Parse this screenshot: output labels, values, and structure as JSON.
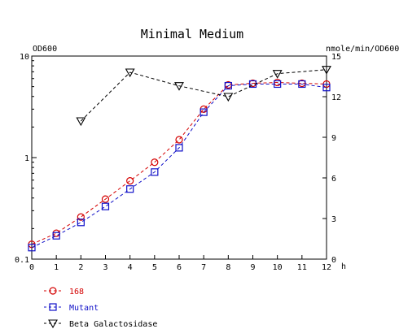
{
  "chart_data": {
    "type": "line",
    "title": "Minimal Medium",
    "left_axis_label": "OD600",
    "right_axis_label": "nmole/min/OD600",
    "x_unit_label": "h",
    "x_ticks": [
      "0",
      "1",
      "2",
      "3",
      "4",
      "5",
      "6",
      "7",
      "8",
      "9",
      "10",
      "11",
      "12"
    ],
    "x_range": [
      0,
      12
    ],
    "left_axis_scale": "log",
    "left_axis_range": [
      0.1,
      10
    ],
    "left_ticks": [
      {
        "value": 0.1,
        "label": "0.1"
      },
      {
        "value": 1,
        "label": "1"
      },
      {
        "value": 10,
        "label": "10"
      }
    ],
    "right_axis_range": [
      0,
      15
    ],
    "right_ticks": [
      "0",
      "3",
      "6",
      "9",
      "12",
      "15"
    ],
    "grid": false,
    "legend_position": "bottom-left",
    "series": [
      {
        "name": "168",
        "axis": "left",
        "color": "#d40000",
        "marker": "circle",
        "x": [
          0,
          1,
          2,
          3,
          4,
          5,
          6,
          7,
          8,
          9,
          10,
          11,
          12
        ],
        "y": [
          0.14,
          0.18,
          0.26,
          0.39,
          0.59,
          0.9,
          1.5,
          3.0,
          5.2,
          5.4,
          5.5,
          5.4,
          5.3
        ]
      },
      {
        "name": "Mutant",
        "axis": "left",
        "color": "#1010c8",
        "marker": "square",
        "x": [
          0,
          1,
          2,
          3,
          4,
          5,
          6,
          7,
          8,
          9,
          10,
          11,
          12
        ],
        "y": [
          0.13,
          0.17,
          0.23,
          0.33,
          0.49,
          0.72,
          1.25,
          2.8,
          5.1,
          5.3,
          5.3,
          5.3,
          4.9
        ]
      },
      {
        "name": "Beta Galactosidase",
        "axis": "right",
        "color": "#000000",
        "marker": "triangle-down",
        "x": [
          2,
          4,
          6,
          8,
          10,
          12
        ],
        "y": [
          10.2,
          13.8,
          12.8,
          12.0,
          13.7,
          14.0
        ]
      }
    ]
  }
}
